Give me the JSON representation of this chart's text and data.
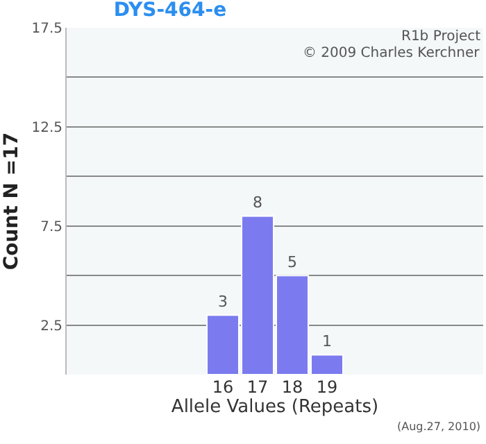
{
  "chart_data": {
    "type": "bar",
    "title": "DYS-464-e",
    "xlabel": "Allele Values (Repeats)",
    "ylabel": "Count N =17",
    "categories": [
      null,
      null,
      null,
      null,
      "16",
      "17",
      "18",
      "19",
      null,
      null,
      null,
      null
    ],
    "values": [
      null,
      null,
      null,
      null,
      3,
      8,
      5,
      1,
      null,
      null,
      null,
      null
    ],
    "color": "#7b7bef",
    "data_labels": true,
    "ylim": [
      0,
      17.5
    ],
    "yticks": [
      {
        "value": 0,
        "label": null
      },
      2.5,
      {
        "value": 5,
        "label": null
      },
      7.5,
      {
        "value": 10,
        "label": null
      },
      12.5,
      {
        "value": 15,
        "label": null
      },
      17.5
    ],
    "grid": "y",
    "legend": false,
    "annotations": [
      "R1b Project",
      "© 2009 Charles Kerchner",
      "(Aug.27, 2010)"
    ]
  }
}
